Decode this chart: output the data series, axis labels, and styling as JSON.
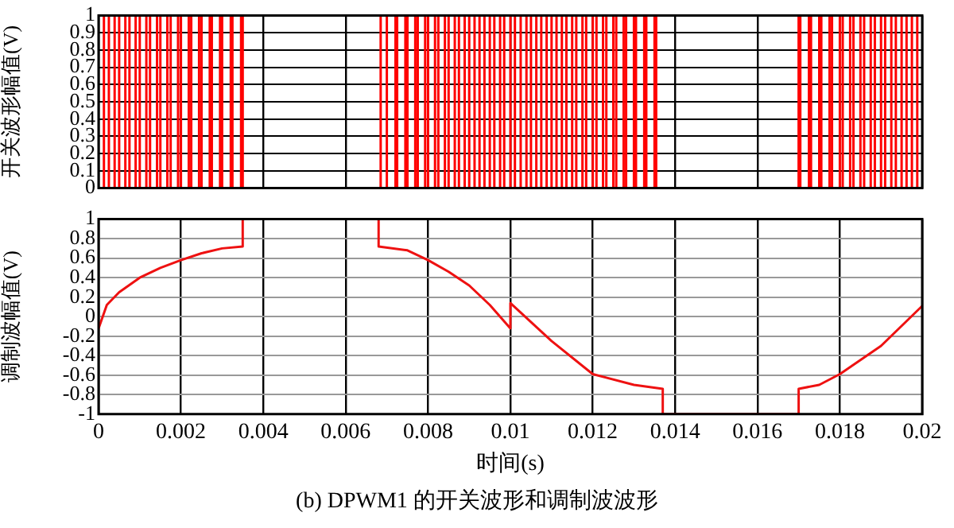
{
  "chart_data": [
    {
      "type": "step",
      "ylabel": "开关波形幅值(V)",
      "color": "#ff0000",
      "x": [
        0,
        0.00013,
        0.00025,
        0.00039,
        0.0005,
        0.00065,
        0.00075,
        0.0009,
        0.001,
        0.00116,
        0.00125,
        0.00142,
        0.0015,
        0.00167,
        0.00175,
        0.00193,
        0.002,
        0.00219,
        0.00225,
        0.00244,
        0.0025,
        0.0027,
        0.00275,
        0.00295,
        0.003,
        0.00321,
        0.00325,
        0.00346,
        0.0035,
        0.00685,
        0.007,
        0.00721,
        0.00725,
        0.00745,
        0.0075,
        0.00769,
        0.00775,
        0.00793,
        0.008,
        0.00817,
        0.00825,
        0.00841,
        0.0085,
        0.00865,
        0.00875,
        0.00889,
        0.009,
        0.00913,
        0.00925,
        0.00937,
        0.0095,
        0.00961,
        0.00975,
        0.00985,
        0.01,
        0.01011,
        0.01025,
        0.01039,
        0.0105,
        0.01063,
        0.01075,
        0.01088,
        0.011,
        0.01112,
        0.01125,
        0.01136,
        0.0115,
        0.0116,
        0.01175,
        0.01184,
        0.012,
        0.01209,
        0.01225,
        0.01233,
        0.0125,
        0.01257,
        0.01275,
        0.01281,
        0.013,
        0.01305,
        0.01325,
        0.0133,
        0.0135,
        0.01354,
        0.017,
        0.01704,
        0.01725,
        0.0173,
        0.0175,
        0.01755,
        0.01775,
        0.01781,
        0.018,
        0.01807,
        0.01825,
        0.01833,
        0.0185,
        0.01859,
        0.01875,
        0.01885,
        0.019,
        0.0191,
        0.01925,
        0.01936,
        0.0195,
        0.01962,
        0.01975,
        0.01988,
        0.02
      ],
      "values": [
        1,
        0,
        1,
        0,
        1,
        0,
        1,
        0,
        1,
        0,
        1,
        0,
        1,
        0,
        1,
        0,
        1,
        0,
        1,
        0,
        1,
        0,
        1,
        0,
        1,
        0,
        1,
        0,
        1,
        0,
        1,
        0,
        1,
        0,
        1,
        0,
        1,
        0,
        1,
        0,
        1,
        0,
        1,
        0,
        1,
        0,
        1,
        0,
        1,
        0,
        1,
        0,
        1,
        0,
        1,
        0,
        1,
        0,
        1,
        0,
        1,
        0,
        1,
        0,
        1,
        0,
        1,
        0,
        1,
        0,
        1,
        0,
        1,
        0,
        1,
        0,
        1,
        0,
        1,
        0,
        1,
        0,
        1,
        0,
        1,
        0,
        1,
        0,
        1,
        0,
        1,
        0,
        1,
        0,
        1,
        0,
        1,
        0,
        1,
        0,
        1,
        0,
        1,
        0,
        1,
        0,
        1,
        0,
        0
      ],
      "xlim": [
        0,
        0.02
      ],
      "xticks": [
        0,
        0.002,
        0.004,
        0.006,
        0.008,
        0.01,
        0.012,
        0.014,
        0.016,
        0.018,
        0.02
      ],
      "ylim": [
        0,
        1
      ],
      "yticks": [
        0,
        0.1,
        0.2,
        0.3,
        0.4,
        0.5,
        0.6,
        0.7,
        0.8,
        0.9,
        1
      ],
      "grid": true,
      "tick_labels": "y"
    },
    {
      "type": "line",
      "ylabel": "调制波幅值(V)",
      "xlabel": "时间(s)",
      "color": "#ee1111",
      "x": [
        0,
        0.0002,
        0.0005,
        0.001,
        0.0015,
        0.002,
        0.0025,
        0.003,
        0.0035,
        0.0035,
        0.0068,
        0.0068,
        0.0075,
        0.008,
        0.0085,
        0.009,
        0.0095,
        0.01,
        0.01,
        0.011,
        0.012,
        0.013,
        0.0137,
        0.0137,
        0.017,
        0.017,
        0.0175,
        0.018,
        0.019,
        0.02
      ],
      "values": [
        -0.12,
        0.12,
        0.25,
        0.4,
        0.5,
        0.58,
        0.65,
        0.7,
        0.72,
        1,
        1,
        0.72,
        0.68,
        0.58,
        0.46,
        0.32,
        0.12,
        -0.12,
        0.14,
        -0.25,
        -0.59,
        -0.7,
        -0.74,
        -1,
        -1,
        -0.74,
        -0.7,
        -0.59,
        -0.3,
        0.11
      ],
      "xlim": [
        0,
        0.02
      ],
      "xticks": [
        0,
        0.002,
        0.004,
        0.006,
        0.008,
        0.01,
        0.012,
        0.014,
        0.016,
        0.018,
        0.02
      ],
      "ylim": [
        -1,
        1
      ],
      "yticks": [
        -1,
        -0.8,
        -0.6,
        -0.4,
        -0.2,
        0,
        0.2,
        0.4,
        0.6,
        0.8,
        1
      ],
      "grid": true,
      "annotations": [
        "(b) DPWM1 的开关波形和调制波波形"
      ]
    }
  ]
}
